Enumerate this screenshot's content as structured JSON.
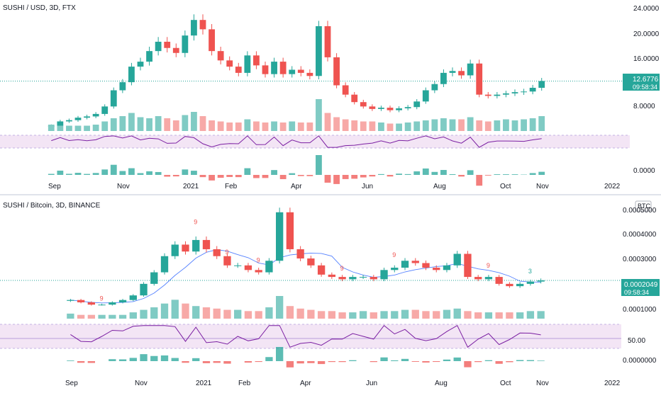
{
  "colors": {
    "up": "#26a69a",
    "down": "#ef5350",
    "vol_up": "#80cbc4",
    "vol_down": "#f7a9a7",
    "rsi_line": "#7b1fa2",
    "rsi_band": "#f3e5f5",
    "price_line": "#26a69a",
    "ma_line": "#2962ff",
    "label_bg": "#26a69a"
  },
  "chart_data": [
    {
      "type": "candlestick",
      "title": "SUSHI / USD, 3D, FTX",
      "x_labels": [
        "Sep",
        "Nov",
        "2021",
        "Feb",
        "Apr",
        "Jun",
        "Aug",
        "Oct",
        "Nov",
        "2022"
      ],
      "y_ticks": [
        "24.0000",
        "20.0000",
        "16.0000",
        "8.0000"
      ],
      "indicator_tick": "0.0000",
      "current_price": "12.6776",
      "countdown": "09:58:34",
      "ylim": [
        5,
        24
      ],
      "close": [
        5.5,
        6.2,
        6.4,
        6.8,
        7.0,
        7.4,
        8.6,
        11.2,
        12.5,
        15.0,
        15.8,
        17.5,
        19.0,
        18.0,
        17.2,
        20.0,
        22.5,
        21.0,
        17.5,
        16.0,
        15.0,
        14.0,
        16.8,
        15.2,
        13.8,
        15.8,
        13.8,
        14.5,
        14.0,
        13.5,
        21.5,
        16.5,
        12.0,
        10.5,
        9.3,
        8.6,
        8.2,
        8.4,
        8.0,
        8.3,
        8.5,
        9.4,
        11.2,
        12.2,
        14.0,
        14.3,
        13.6,
        15.5,
        10.5,
        10.3,
        10.5,
        10.7,
        10.9,
        11.0,
        11.6,
        12.68
      ],
      "volume": [
        6,
        5,
        5,
        5,
        5,
        6,
        9,
        12,
        14,
        17,
        13,
        12,
        14,
        12,
        10,
        15,
        18,
        14,
        10,
        9,
        8,
        8,
        11,
        9,
        8,
        9,
        8,
        9,
        8,
        8,
        30,
        17,
        13,
        11,
        10,
        9,
        9,
        8,
        7,
        7,
        8,
        9,
        10,
        11,
        12,
        11,
        11,
        13,
        10,
        9,
        10,
        11,
        10,
        11,
        12,
        14
      ],
      "trendline_label": "",
      "markers": []
    },
    {
      "type": "candlestick",
      "title": "SUSHI / Bitcoin, 3D, BINANCE",
      "x_labels": [
        "Sep",
        "Nov",
        "2021",
        "Feb",
        "Apr",
        "Jun",
        "Aug",
        "Oct",
        "Nov",
        "2022"
      ],
      "y_ticks": [
        "0.0005000",
        "0.0004000",
        "0.0003000",
        "0.0001000"
      ],
      "indicator_ticks": [
        "50.00",
        "0.0000000"
      ],
      "currency_badge": "BTC",
      "current_price": "0.0002049",
      "countdown": "09:58:34",
      "ylim": [
        7e-05,
        0.00053
      ],
      "close": [
        0.00012,
        0.00011,
        0.0001,
        0.0001,
        0.00011,
        0.00012,
        0.00014,
        0.00019,
        0.00024,
        0.00031,
        0.00036,
        0.00033,
        0.00038,
        0.00034,
        0.00031,
        0.00027,
        0.00027,
        0.00025,
        0.00024,
        0.00029,
        0.0005,
        0.00034,
        0.0003,
        0.00027,
        0.00023,
        0.00022,
        0.00021,
        0.00022,
        0.00022,
        0.00021,
        0.00025,
        0.00026,
        0.00029,
        0.00028,
        0.00026,
        0.00025,
        0.00027,
        0.00032,
        0.00022,
        0.00021,
        0.00022,
        0.00019,
        0.00018,
        0.00019,
        0.0002,
        0.000205
      ],
      "volume": [
        4,
        3,
        3,
        3,
        3,
        3,
        5,
        7,
        9,
        12,
        15,
        12,
        10,
        9,
        8,
        7,
        7,
        6,
        6,
        9,
        18,
        10,
        8,
        7,
        6,
        6,
        5,
        5,
        6,
        5,
        6,
        6,
        7,
        7,
        6,
        6,
        7,
        8,
        6,
        5,
        5,
        5,
        5,
        5,
        6,
        6
      ],
      "markers": [
        "9",
        "9",
        "9",
        "9",
        "9",
        "9",
        "9",
        "3"
      ]
    }
  ]
}
